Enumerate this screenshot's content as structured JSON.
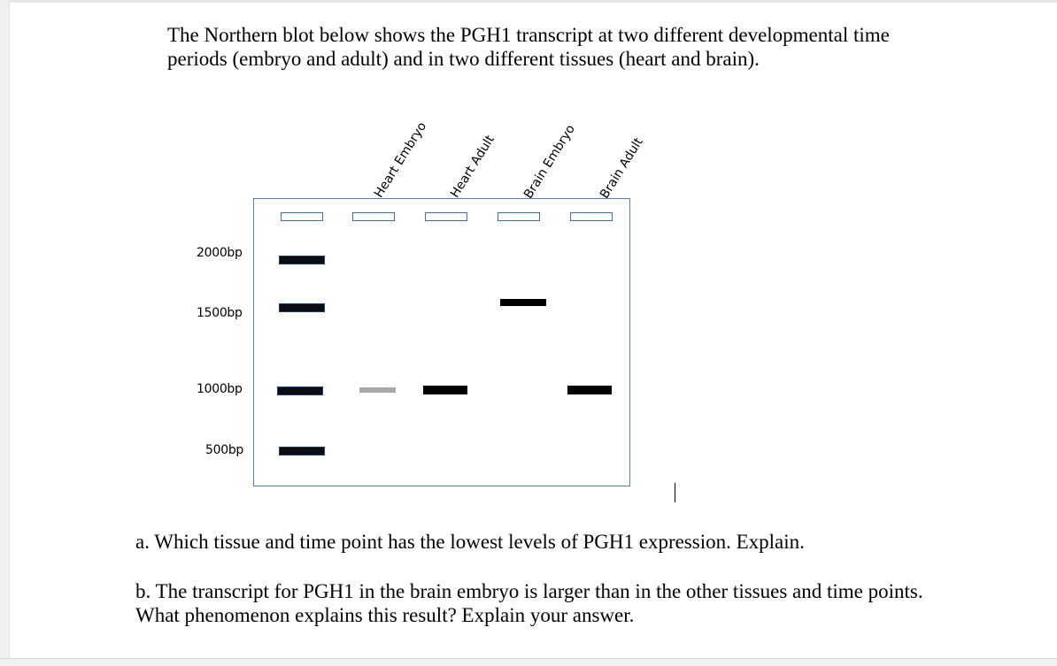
{
  "intro": {
    "line1": "The Northern blot below shows the PGH1 transcript at two different developmental time",
    "line2": "periods (embryo and adult) and in two different tissues (heart and brain)."
  },
  "blot": {
    "lanes": [
      "Heart Embryo",
      "Heart Adult",
      "Brain Embryo",
      "Brain Adult"
    ],
    "size_markers": [
      "2000bp",
      "1500bp",
      "1000bp",
      "500bp"
    ]
  },
  "questions": {
    "a": "a. Which tissue and time point has the lowest levels of PGH1 expression. Explain.",
    "b_line1": "b. The transcript for PGH1 in the brain embryo is larger than in the other tissues and time points.",
    "b_line2": "What phenomenon explains this result? Explain your answer."
  }
}
